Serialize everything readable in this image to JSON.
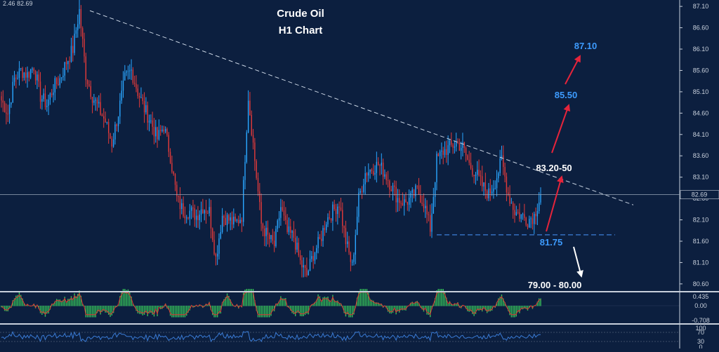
{
  "header": {
    "ohlc_readout": "2.46 82.69"
  },
  "title": {
    "line1": "Crude Oil",
    "line2": "H1 Chart"
  },
  "colors": {
    "background": "#0c1f3f",
    "bull_candle": "#2aa6ff",
    "bear_candle": "#e23a3a",
    "trendline": "#c9d4e3",
    "support_line": "#3d7fd8",
    "arrow_red": "#e5243b",
    "arrow_white": "#ffffff",
    "target_blue": "#3d9bff",
    "macd_bar": "#37c25a",
    "macd_signal": "#d33",
    "rsi_line": "#3a7bd5"
  },
  "annotations": {
    "target_high": "87.10",
    "target_mid": "85.50",
    "resistance": "83.20-50",
    "support": "81.75",
    "downside_target": "79.00 - 80.00"
  },
  "price_tag": "82.69",
  "chart_data": {
    "type": "candlestick",
    "title": "Crude Oil H1 Chart",
    "ylim": [
      80.45,
      87.25
    ],
    "y_ticks": [
      "87.10",
      "86.60",
      "86.10",
      "85.60",
      "85.10",
      "84.60",
      "84.10",
      "83.60",
      "83.10",
      "82.60",
      "82.10",
      "81.60",
      "81.10",
      "80.60"
    ],
    "current_price": 82.69,
    "close_path": [
      84.9,
      84.6,
      85.4,
      85.6,
      85.5,
      85.7,
      85.0,
      84.8,
      85.2,
      85.4,
      85.8,
      86.1,
      87.0,
      85.5,
      85.0,
      84.7,
      84.4,
      83.9,
      84.6,
      85.4,
      85.6,
      85.1,
      84.7,
      84.4,
      84.0,
      84.3,
      83.6,
      82.6,
      82.3,
      82.3,
      82.2,
      82.4,
      82.3,
      81.2,
      82.2,
      82.1,
      82.0,
      82.2,
      85.0,
      83.5,
      82.0,
      81.7,
      81.5,
      82.4,
      81.8,
      81.7,
      81.1,
      80.8,
      81.3,
      81.6,
      82.1,
      82.3,
      82.5,
      81.6,
      81.0,
      82.6,
      83.2,
      83.3,
      83.4,
      83.2,
      82.9,
      82.6,
      82.5,
      82.6,
      82.8,
      82.5,
      81.9,
      83.5,
      83.7,
      83.8,
      83.9,
      83.8,
      83.4,
      83.2,
      82.9,
      82.7,
      83.0,
      83.5,
      82.7,
      82.3,
      82.2,
      82.1,
      82.2,
      82.7
    ],
    "trendline": {
      "from": {
        "x_frac": 0.0,
        "y": 87.0
      },
      "to_price_at_end": 82.45,
      "style": "dashed"
    },
    "support_level": 81.75,
    "macd": {
      "ylim": [
        -0.708,
        0.435
      ],
      "ticks": [
        "0.435",
        "0.00",
        "-0.708"
      ]
    },
    "rsi": {
      "ticks": [
        "100",
        "70",
        "30",
        "0"
      ]
    }
  }
}
